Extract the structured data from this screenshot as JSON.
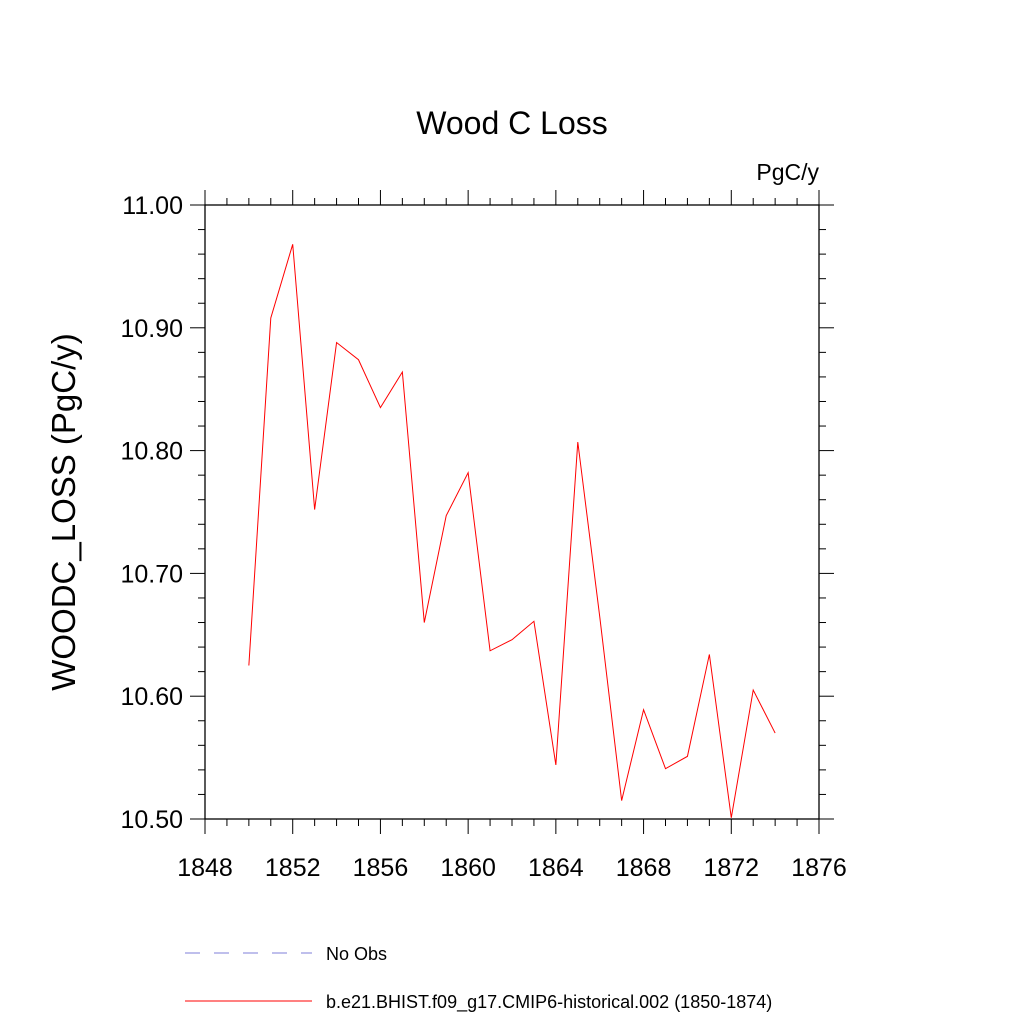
{
  "chart_data": {
    "type": "line",
    "title": "Wood C Loss",
    "units_label": "PgC/y",
    "ylabel": "WOODC_LOSS  (PgC/y)",
    "xlabel": "",
    "xlim": [
      1848,
      1876
    ],
    "ylim": [
      10.5,
      11.0
    ],
    "x_ticks": [
      1848,
      1852,
      1856,
      1860,
      1864,
      1868,
      1872,
      1876
    ],
    "x_tick_labels": [
      "1848",
      "1852",
      "1856",
      "1860",
      "1864",
      "1868",
      "1872",
      "1876"
    ],
    "y_ticks": [
      10.5,
      10.6,
      10.7,
      10.8,
      10.9,
      11.0
    ],
    "y_tick_labels": [
      "10.50",
      "10.60",
      "10.70",
      "10.80",
      "10.90",
      "11.00"
    ],
    "grid": false,
    "legend_position": "bottom",
    "legend": [
      {
        "label": "No Obs",
        "color": "#7f7fd9",
        "style": "dashed"
      },
      {
        "label": "b.e21.BHIST.f09_g17.CMIP6-historical.002 (1850-1874)",
        "color": "#ff0000",
        "style": "solid"
      }
    ],
    "series": [
      {
        "name": "b.e21.BHIST.f09_g17.CMIP6-historical.002 (1850-1874)",
        "color": "#ff0000",
        "x": [
          1850,
          1851,
          1852,
          1853,
          1854,
          1855,
          1856,
          1857,
          1858,
          1859,
          1860,
          1861,
          1862,
          1863,
          1864,
          1865,
          1866,
          1867,
          1868,
          1869,
          1870,
          1871,
          1872,
          1873,
          1874
        ],
        "y": [
          10.625,
          10.908,
          10.968,
          10.752,
          10.888,
          10.874,
          10.835,
          10.864,
          10.66,
          10.747,
          10.782,
          10.637,
          10.646,
          10.661,
          10.544,
          10.807,
          10.665,
          10.515,
          10.589,
          10.541,
          10.551,
          10.634,
          10.501,
          10.605,
          10.57
        ]
      }
    ]
  }
}
